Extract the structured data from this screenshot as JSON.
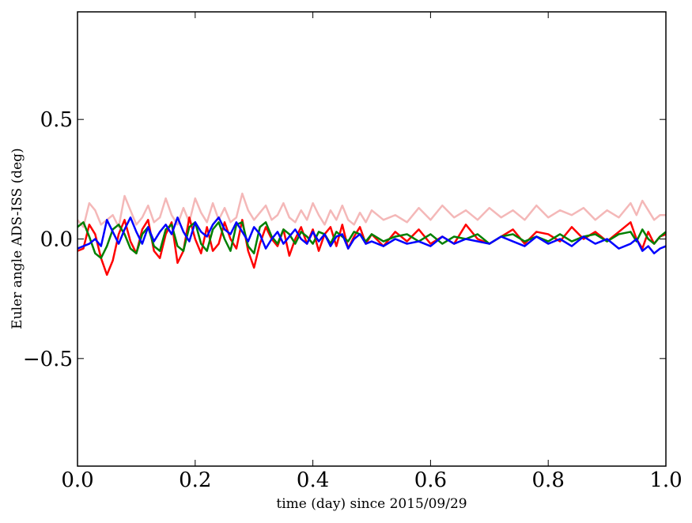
{
  "chart_data": {
    "type": "line",
    "xlabel": "time (day) since 2015/09/29",
    "ylabel": "Euler angle ADS-ISS (deg)",
    "xlim": [
      0.0,
      1.0
    ],
    "ylim": [
      -0.95,
      0.95
    ],
    "x_ticks": [
      {
        "value": 0.0,
        "label": "0.0"
      },
      {
        "value": 0.2,
        "label": "0.2"
      },
      {
        "value": 0.4,
        "label": "0.4"
      },
      {
        "value": 0.6,
        "label": "0.6"
      },
      {
        "value": 0.8,
        "label": "0.8"
      },
      {
        "value": 1.0,
        "label": "1.0"
      }
    ],
    "y_ticks": [
      {
        "value": 0.5,
        "label": "0.5"
      },
      {
        "value": 0.0,
        "label": "0.0"
      },
      {
        "value": -0.5,
        "label": "−0.5"
      }
    ],
    "grid": false,
    "legend": "none",
    "series": [
      {
        "color": "#f4b8b8",
        "x": [
          0.0,
          0.01,
          0.02,
          0.03,
          0.04,
          0.05,
          0.06,
          0.07,
          0.08,
          0.09,
          0.1,
          0.11,
          0.12,
          0.13,
          0.14,
          0.15,
          0.16,
          0.17,
          0.18,
          0.19,
          0.2,
          0.21,
          0.22,
          0.23,
          0.24,
          0.25,
          0.26,
          0.27,
          0.28,
          0.29,
          0.3,
          0.31,
          0.32,
          0.33,
          0.34,
          0.35,
          0.36,
          0.37,
          0.38,
          0.39,
          0.4,
          0.41,
          0.42,
          0.43,
          0.44,
          0.45,
          0.46,
          0.47,
          0.48,
          0.49,
          0.5,
          0.52,
          0.54,
          0.56,
          0.58,
          0.6,
          0.62,
          0.64,
          0.66,
          0.68,
          0.7,
          0.72,
          0.74,
          0.76,
          0.78,
          0.8,
          0.82,
          0.84,
          0.86,
          0.88,
          0.9,
          0.92,
          0.94,
          0.95,
          0.96,
          0.97,
          0.98,
          0.99,
          1.0
        ],
        "y": [
          0.08,
          0.05,
          0.15,
          0.12,
          0.06,
          0.08,
          0.1,
          0.05,
          0.18,
          0.12,
          0.06,
          0.09,
          0.14,
          0.07,
          0.09,
          0.17,
          0.1,
          0.06,
          0.13,
          0.07,
          0.17,
          0.11,
          0.07,
          0.15,
          0.08,
          0.13,
          0.07,
          0.09,
          0.19,
          0.12,
          0.08,
          0.11,
          0.14,
          0.08,
          0.1,
          0.15,
          0.09,
          0.07,
          0.12,
          0.08,
          0.15,
          0.1,
          0.06,
          0.12,
          0.08,
          0.14,
          0.08,
          0.06,
          0.11,
          0.07,
          0.12,
          0.08,
          0.1,
          0.07,
          0.13,
          0.08,
          0.14,
          0.09,
          0.12,
          0.08,
          0.13,
          0.09,
          0.12,
          0.08,
          0.14,
          0.09,
          0.12,
          0.1,
          0.13,
          0.08,
          0.12,
          0.09,
          0.15,
          0.1,
          0.16,
          0.12,
          0.08,
          0.1,
          0.1
        ]
      },
      {
        "color": "#ff0000",
        "x": [
          0.0,
          0.01,
          0.02,
          0.03,
          0.04,
          0.05,
          0.06,
          0.07,
          0.08,
          0.09,
          0.1,
          0.11,
          0.12,
          0.13,
          0.14,
          0.15,
          0.16,
          0.17,
          0.18,
          0.19,
          0.2,
          0.21,
          0.22,
          0.23,
          0.24,
          0.25,
          0.26,
          0.27,
          0.28,
          0.29,
          0.3,
          0.31,
          0.32,
          0.33,
          0.34,
          0.35,
          0.36,
          0.37,
          0.38,
          0.39,
          0.4,
          0.41,
          0.42,
          0.43,
          0.44,
          0.45,
          0.46,
          0.47,
          0.48,
          0.49,
          0.5,
          0.52,
          0.54,
          0.56,
          0.58,
          0.6,
          0.62,
          0.64,
          0.66,
          0.68,
          0.7,
          0.72,
          0.74,
          0.76,
          0.78,
          0.8,
          0.82,
          0.84,
          0.86,
          0.88,
          0.9,
          0.92,
          0.94,
          0.95,
          0.96,
          0.97,
          0.98,
          0.99,
          1.0
        ],
        "y": [
          -0.05,
          -0.04,
          0.06,
          0.02,
          -0.08,
          -0.15,
          -0.09,
          0.02,
          0.08,
          -0.01,
          -0.06,
          0.04,
          0.08,
          -0.05,
          -0.08,
          0.02,
          0.07,
          -0.1,
          -0.05,
          0.09,
          0.0,
          -0.06,
          0.05,
          -0.05,
          -0.02,
          0.07,
          0.0,
          -0.04,
          0.08,
          -0.05,
          -0.12,
          -0.02,
          0.05,
          0.0,
          -0.03,
          0.04,
          -0.07,
          0.0,
          0.05,
          -0.02,
          0.04,
          -0.05,
          0.02,
          0.05,
          -0.03,
          0.06,
          -0.04,
          0.01,
          0.05,
          -0.02,
          0.02,
          -0.03,
          0.03,
          -0.01,
          0.04,
          -0.02,
          0.01,
          -0.02,
          0.06,
          0.0,
          -0.02,
          0.01,
          0.04,
          -0.02,
          0.03,
          0.02,
          -0.01,
          0.05,
          0.0,
          0.03,
          -0.01,
          0.03,
          0.07,
          0.0,
          -0.04,
          0.03,
          -0.02,
          0.01,
          0.02
        ]
      },
      {
        "color": "#008000",
        "x": [
          0.0,
          0.01,
          0.02,
          0.03,
          0.04,
          0.05,
          0.06,
          0.07,
          0.08,
          0.09,
          0.1,
          0.11,
          0.12,
          0.13,
          0.14,
          0.15,
          0.16,
          0.17,
          0.18,
          0.19,
          0.2,
          0.21,
          0.22,
          0.23,
          0.24,
          0.25,
          0.26,
          0.27,
          0.28,
          0.29,
          0.3,
          0.31,
          0.32,
          0.33,
          0.34,
          0.35,
          0.36,
          0.37,
          0.38,
          0.39,
          0.4,
          0.41,
          0.42,
          0.43,
          0.44,
          0.45,
          0.46,
          0.47,
          0.48,
          0.49,
          0.5,
          0.52,
          0.54,
          0.56,
          0.58,
          0.6,
          0.62,
          0.64,
          0.66,
          0.68,
          0.7,
          0.72,
          0.74,
          0.76,
          0.78,
          0.8,
          0.82,
          0.84,
          0.86,
          0.88,
          0.9,
          0.92,
          0.94,
          0.95,
          0.96,
          0.97,
          0.98,
          0.99,
          1.0
        ],
        "y": [
          0.05,
          0.07,
          0.01,
          -0.06,
          -0.08,
          -0.03,
          0.04,
          0.06,
          0.02,
          -0.04,
          -0.06,
          0.02,
          0.05,
          -0.03,
          -0.05,
          0.04,
          0.06,
          -0.03,
          -0.05,
          0.05,
          0.07,
          -0.02,
          -0.05,
          0.04,
          0.07,
          0.0,
          -0.05,
          0.06,
          0.07,
          -0.03,
          -0.06,
          0.05,
          0.07,
          0.01,
          -0.02,
          0.04,
          0.02,
          -0.02,
          0.03,
          0.01,
          -0.02,
          0.03,
          0.02,
          -0.02,
          0.03,
          0.01,
          -0.01,
          0.03,
          0.02,
          -0.01,
          0.02,
          -0.01,
          0.01,
          0.02,
          -0.01,
          0.02,
          -0.02,
          0.01,
          0.0,
          0.02,
          -0.02,
          0.01,
          0.02,
          -0.01,
          0.01,
          -0.01,
          0.02,
          -0.01,
          0.01,
          0.02,
          -0.01,
          0.02,
          0.03,
          -0.01,
          0.04,
          0.0,
          -0.02,
          0.01,
          0.03
        ]
      },
      {
        "color": "#0000ff",
        "x": [
          0.0,
          0.01,
          0.02,
          0.03,
          0.04,
          0.05,
          0.06,
          0.07,
          0.08,
          0.09,
          0.1,
          0.11,
          0.12,
          0.13,
          0.14,
          0.15,
          0.16,
          0.17,
          0.18,
          0.19,
          0.2,
          0.21,
          0.22,
          0.23,
          0.24,
          0.25,
          0.26,
          0.27,
          0.28,
          0.29,
          0.3,
          0.31,
          0.32,
          0.33,
          0.34,
          0.35,
          0.36,
          0.37,
          0.38,
          0.39,
          0.4,
          0.41,
          0.42,
          0.43,
          0.44,
          0.45,
          0.46,
          0.47,
          0.48,
          0.49,
          0.5,
          0.52,
          0.54,
          0.56,
          0.58,
          0.6,
          0.62,
          0.64,
          0.66,
          0.68,
          0.7,
          0.72,
          0.74,
          0.76,
          0.78,
          0.8,
          0.82,
          0.84,
          0.86,
          0.88,
          0.9,
          0.92,
          0.94,
          0.95,
          0.96,
          0.97,
          0.98,
          0.99,
          1.0
        ],
        "y": [
          -0.04,
          -0.03,
          -0.02,
          0.0,
          -0.03,
          0.08,
          0.03,
          -0.02,
          0.04,
          0.09,
          0.03,
          -0.02,
          0.05,
          -0.01,
          0.03,
          0.06,
          0.02,
          0.09,
          0.03,
          -0.01,
          0.07,
          0.03,
          0.01,
          0.06,
          0.09,
          0.04,
          0.02,
          0.07,
          0.03,
          -0.01,
          0.05,
          0.02,
          -0.04,
          0.0,
          0.03,
          -0.02,
          0.01,
          0.04,
          0.0,
          -0.02,
          0.03,
          -0.01,
          0.02,
          -0.03,
          0.01,
          0.02,
          -0.04,
          0.0,
          0.02,
          -0.02,
          -0.01,
          -0.03,
          0.0,
          -0.02,
          -0.01,
          -0.03,
          0.01,
          -0.02,
          0.0,
          -0.01,
          -0.02,
          0.01,
          -0.01,
          -0.03,
          0.01,
          -0.02,
          0.0,
          -0.03,
          0.01,
          -0.02,
          0.0,
          -0.04,
          -0.02,
          0.0,
          -0.05,
          -0.03,
          -0.06,
          -0.04,
          -0.03
        ]
      }
    ]
  }
}
